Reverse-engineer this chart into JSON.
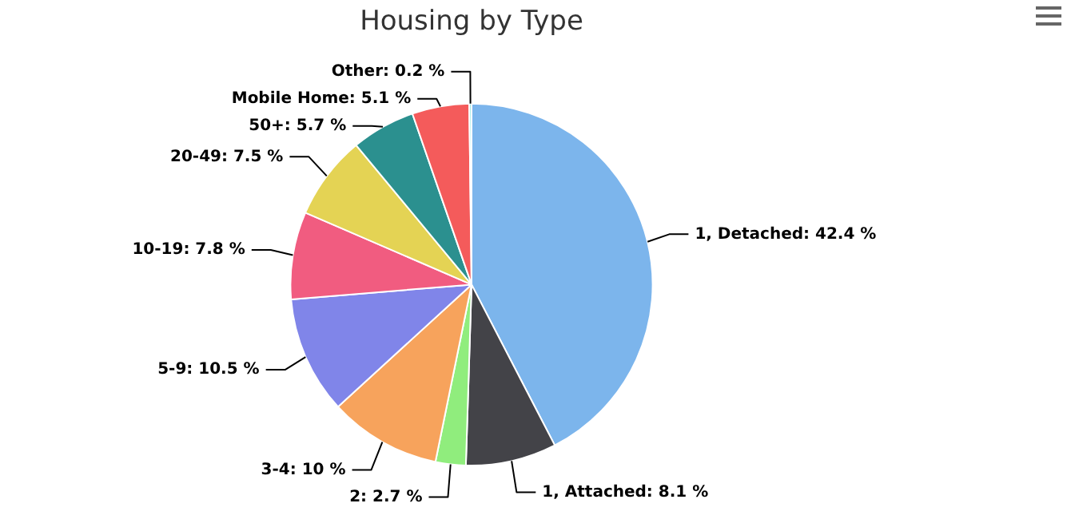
{
  "chart_data": {
    "type": "pie",
    "title": "Housing by Type",
    "categories": [
      "1, Detached",
      "1, Attached",
      "2",
      "3-4",
      "5-9",
      "10-19",
      "20-49",
      "50+",
      "Mobile Home",
      "Other"
    ],
    "values": [
      42.4,
      8.1,
      2.7,
      10,
      10.5,
      7.8,
      7.5,
      5.7,
      5.1,
      0.2
    ],
    "value_labels": [
      "42.4 %",
      "8.1 %",
      "2.7 %",
      "10 %",
      "10.5 %",
      "7.8 %",
      "7.5 %",
      "5.7 %",
      "5.1 %",
      "0.2 %"
    ],
    "colors": [
      "#7cb5ec",
      "#434348",
      "#90ed7d",
      "#f7a35c",
      "#8085e9",
      "#f15c80",
      "#e4d354",
      "#2b908f",
      "#f45b5b",
      "#91e8e1"
    ],
    "legend": false
  }
}
